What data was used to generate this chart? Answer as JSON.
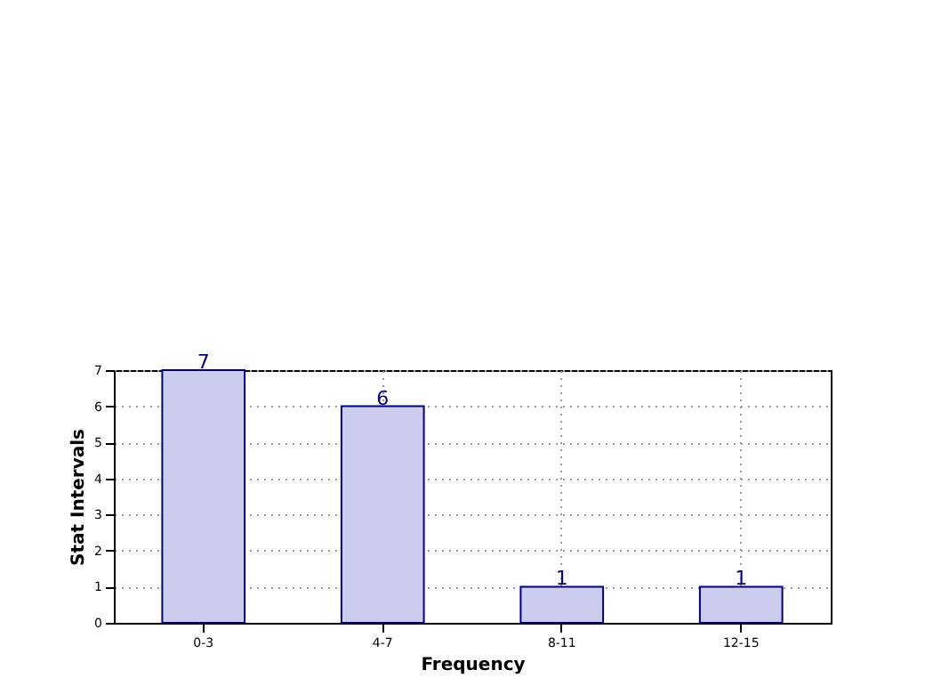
{
  "chart_data": {
    "type": "bar",
    "xlabel": "Frequency",
    "ylabel": "Stat Intervals",
    "categories": [
      "0-3",
      "4-7",
      "8-11",
      "12-15"
    ],
    "series": [
      {
        "color": "#ccccee",
        "values": [
          7,
          6,
          1,
          1
        ]
      }
    ],
    "ylim": [
      0,
      7
    ],
    "yticks": [
      0,
      1,
      2,
      3,
      4,
      5,
      6,
      7
    ],
    "grid": true,
    "data_labels": true
  }
}
